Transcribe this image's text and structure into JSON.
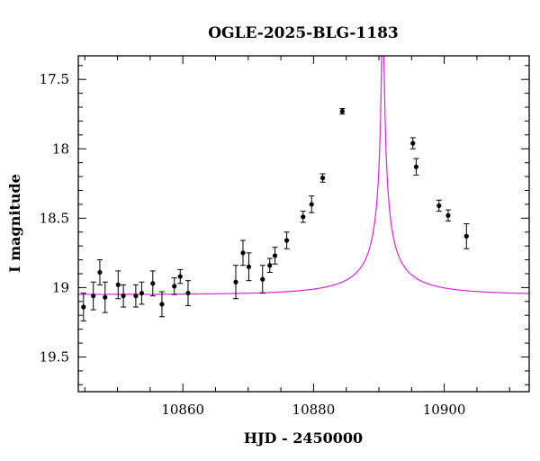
{
  "chart_data": {
    "type": "scatter",
    "title": "OGLE-2025-BLG-1183",
    "xlabel": "HJD - 2450000",
    "ylabel": "I magnitude",
    "xlim": [
      10844,
      10913
    ],
    "ylim": [
      19.75,
      17.33
    ],
    "y_inverted": true,
    "x_ticks": [
      10860,
      10880,
      10900
    ],
    "y_ticks": [
      17.5,
      18,
      18.5,
      19,
      19.5
    ],
    "y_tick_labels": [
      "17.5",
      "18",
      "18.5",
      "19",
      "19.5"
    ],
    "grid": false,
    "colors": {
      "points": "#000000",
      "model": "#e020e0"
    },
    "model": {
      "t0": 10890.6,
      "tE": 14.5,
      "u0": 0.008,
      "fs": 0.058,
      "base_mag": 19.05
    },
    "series": [
      {
        "points": [
          {
            "x": 10844.8,
            "y": 19.14,
            "err": 0.1
          },
          {
            "x": 10846.3,
            "y": 19.06,
            "err": 0.1
          },
          {
            "x": 10847.3,
            "y": 18.89,
            "err": 0.09
          },
          {
            "x": 10848.1,
            "y": 19.07,
            "err": 0.11
          },
          {
            "x": 10850.1,
            "y": 18.98,
            "err": 0.1
          },
          {
            "x": 10850.9,
            "y": 19.06,
            "err": 0.08
          },
          {
            "x": 10852.8,
            "y": 19.06,
            "err": 0.08
          },
          {
            "x": 10853.7,
            "y": 19.04,
            "err": 0.08
          },
          {
            "x": 10855.4,
            "y": 18.97,
            "err": 0.09
          },
          {
            "x": 10856.8,
            "y": 19.12,
            "err": 0.09
          },
          {
            "x": 10858.7,
            "y": 18.99,
            "err": 0.06
          },
          {
            "x": 10859.6,
            "y": 18.92,
            "err": 0.05
          },
          {
            "x": 10860.8,
            "y": 19.04,
            "err": 0.09
          },
          {
            "x": 10868.1,
            "y": 18.96,
            "err": 0.12
          },
          {
            "x": 10869.2,
            "y": 18.75,
            "err": 0.09
          },
          {
            "x": 10870.1,
            "y": 18.85,
            "err": 0.1
          },
          {
            "x": 10872.2,
            "y": 18.94,
            "err": 0.1
          },
          {
            "x": 10873.3,
            "y": 18.84,
            "err": 0.05
          },
          {
            "x": 10874.1,
            "y": 18.77,
            "err": 0.06
          },
          {
            "x": 10875.9,
            "y": 18.66,
            "err": 0.06
          },
          {
            "x": 10878.4,
            "y": 18.49,
            "err": 0.04
          },
          {
            "x": 10879.7,
            "y": 18.4,
            "err": 0.06
          },
          {
            "x": 10881.4,
            "y": 18.21,
            "err": 0.03
          },
          {
            "x": 10884.4,
            "y": 17.73,
            "err": 0.02
          },
          {
            "x": 10895.2,
            "y": 17.96,
            "err": 0.04
          },
          {
            "x": 10895.7,
            "y": 18.13,
            "err": 0.06
          },
          {
            "x": 10899.2,
            "y": 18.41,
            "err": 0.04
          },
          {
            "x": 10900.6,
            "y": 18.48,
            "err": 0.04
          },
          {
            "x": 10903.4,
            "y": 18.63,
            "err": 0.09
          }
        ]
      }
    ]
  }
}
